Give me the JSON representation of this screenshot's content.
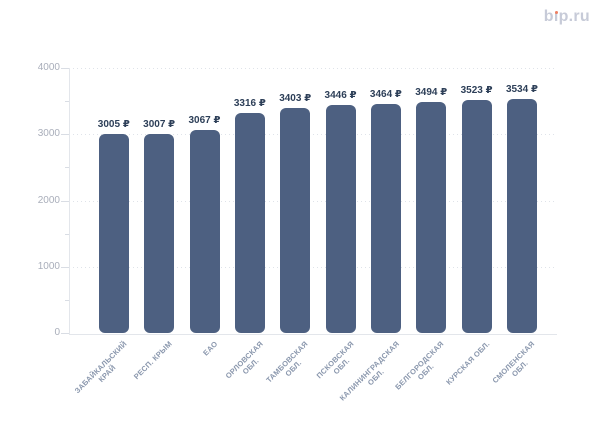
{
  "watermark": {
    "text": "bip.ru",
    "parts": {
      "b": "b",
      "i_stem": "ı",
      "rest": "p.ru"
    },
    "text_color": "#c7cbd8",
    "dot_color": "#ee7f61"
  },
  "chart_data": {
    "type": "bar",
    "title": "",
    "xlabel": "",
    "ylabel": "",
    "categories": [
      "ЗАБАЙКАЛЬСКИЙ КРАЙ",
      "РЕСП. КРЫМ",
      "ЕАО",
      "ОРЛОВСКАЯ ОБЛ.",
      "ТАМБОВСКАЯ ОБЛ.",
      "ПСКОВСКАЯ ОБЛ.",
      "КАЛИНИНГРАДСКАЯ ОБЛ.",
      "БЕЛГОРОДСКАЯ ОБЛ.",
      "КУРСКАЯ ОБЛ.",
      "СМОЛЕНСКАЯ ОБЛ."
    ],
    "category_lines": [
      [
        "ЗАБАЙКАЛЬСКИЙ",
        "КРАЙ"
      ],
      [
        "РЕСП. КРЫМ"
      ],
      [
        "ЕАО"
      ],
      [
        "ОРЛОВСКАЯ",
        "ОБЛ."
      ],
      [
        "ТАМБОВСКАЯ",
        "ОБЛ."
      ],
      [
        "ПСКОВСКАЯ",
        "ОБЛ."
      ],
      [
        "КАЛИНИНГРАДСКАЯ",
        "ОБЛ."
      ],
      [
        "БЕЛГОРОДСКАЯ",
        "ОБЛ."
      ],
      [
        "КУРСКАЯ ОБЛ."
      ],
      [
        "СМОЛЕНСКАЯ",
        "ОБЛ."
      ]
    ],
    "values": [
      3005,
      3007,
      3067,
      3316,
      3403,
      3446,
      3464,
      3494,
      3523,
      3534
    ],
    "value_suffix": "₽",
    "value_labels": [
      "3005 ₽",
      "3007 ₽",
      "3067 ₽",
      "3316 ₽",
      "3403 ₽",
      "3446 ₽",
      "3464 ₽",
      "3494 ₽",
      "3523 ₽",
      "3534 ₽"
    ],
    "ylim": [
      0,
      4000
    ],
    "yticks": [
      0,
      1000,
      2000,
      3000,
      4000
    ],
    "ytick_labels": [
      "0",
      "1000",
      "2000",
      "3000",
      "4000"
    ],
    "minor_ytick_step": 500,
    "grid": "horizontal dotted at major ticks",
    "legend": "none",
    "colors": {
      "bar": "#4d6081",
      "value_label": "#2d3f58",
      "ytick_label": "#a9aeba",
      "xtick_label": "#8a97ad",
      "axis_line": "#e3e6eb",
      "tick_mark": "#d9dde4",
      "gridline": "#dfe3e9",
      "background": "#ffffff",
      "watermark": "#c7cbd8",
      "watermark_dot": "#ee7f61"
    }
  }
}
